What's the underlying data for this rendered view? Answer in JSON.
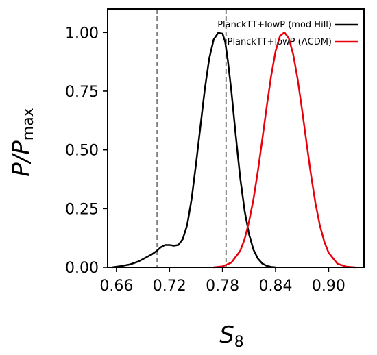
{
  "chart_data": {
    "type": "line",
    "xlabel": "S",
    "xlabel_sub": "8",
    "ylabel": "P/P",
    "ylabel_sub": "max",
    "xlim": [
      0.65,
      0.94
    ],
    "ylim": [
      0.0,
      1.1
    ],
    "xticks": [
      "0.66",
      "0.72",
      "0.78",
      "0.84",
      "0.90"
    ],
    "yticks": [
      "0.00",
      "0.25",
      "0.50",
      "0.75",
      "1.00"
    ],
    "vlines": [
      0.706,
      0.784
    ],
    "legend_position": "top-right",
    "grid": false,
    "series": [
      {
        "name": "PlanckTT+lowP (mod Hill)",
        "color": "#000000",
        "x": [
          0.655,
          0.665,
          0.675,
          0.685,
          0.695,
          0.7,
          0.705,
          0.71,
          0.715,
          0.72,
          0.725,
          0.73,
          0.735,
          0.74,
          0.745,
          0.75,
          0.755,
          0.76,
          0.765,
          0.77,
          0.775,
          0.78,
          0.783,
          0.786,
          0.79,
          0.795,
          0.8,
          0.805,
          0.81,
          0.815,
          0.82,
          0.825,
          0.83,
          0.835,
          0.84
        ],
        "y": [
          0.0,
          0.005,
          0.012,
          0.025,
          0.045,
          0.055,
          0.068,
          0.085,
          0.095,
          0.095,
          0.092,
          0.095,
          0.12,
          0.18,
          0.29,
          0.44,
          0.6,
          0.76,
          0.89,
          0.97,
          0.998,
          0.995,
          0.96,
          0.88,
          0.75,
          0.56,
          0.38,
          0.24,
          0.14,
          0.075,
          0.037,
          0.016,
          0.006,
          0.002,
          0.0
        ]
      },
      {
        "name": "PlanckTT+lowP (ΛCDM)",
        "color": "#e8000b",
        "x": [
          0.77,
          0.78,
          0.79,
          0.8,
          0.805,
          0.81,
          0.815,
          0.82,
          0.825,
          0.83,
          0.835,
          0.84,
          0.845,
          0.85,
          0.855,
          0.86,
          0.865,
          0.87,
          0.875,
          0.88,
          0.885,
          0.89,
          0.895,
          0.9,
          0.91,
          0.92,
          0.93
        ],
        "y": [
          0.0,
          0.004,
          0.02,
          0.07,
          0.12,
          0.195,
          0.29,
          0.41,
          0.545,
          0.685,
          0.815,
          0.92,
          0.985,
          1.0,
          0.975,
          0.905,
          0.8,
          0.67,
          0.53,
          0.395,
          0.275,
          0.18,
          0.11,
          0.062,
          0.015,
          0.003,
          0.0
        ]
      }
    ]
  }
}
